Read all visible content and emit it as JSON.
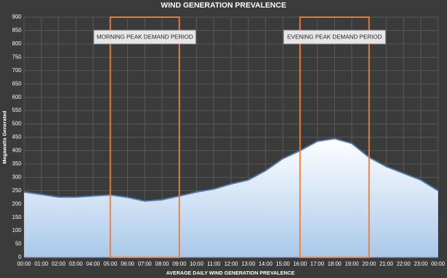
{
  "chart_data": {
    "type": "area",
    "title": "WIND GENERATION PREVALENCE",
    "x_label": "AVERAGE DAILY WIND GENERATION PREVALENCE",
    "y_label": "Megawatts Generated",
    "categories": [
      "00:00",
      "01:00",
      "02:00",
      "03:00",
      "04:00",
      "05:00",
      "06:00",
      "07:00",
      "08:00",
      "09:00",
      "10:00",
      "11:00",
      "12:00",
      "13:00",
      "14:00",
      "15:00",
      "16:00",
      "17:00",
      "18:00",
      "19:00",
      "20:00",
      "21:00",
      "22:00",
      "23:00",
      "00:00"
    ],
    "values": [
      245,
      236,
      226,
      226,
      230,
      234,
      225,
      211,
      216,
      230,
      245,
      256,
      275,
      290,
      325,
      370,
      400,
      435,
      445,
      427,
      375,
      340,
      315,
      290,
      250
    ],
    "color": "#4a7bb5",
    "ylim": [
      0,
      900
    ],
    "yticks": [
      0,
      50,
      100,
      150,
      200,
      250,
      300,
      350,
      400,
      450,
      500,
      550,
      600,
      650,
      700,
      750,
      800,
      850,
      900
    ],
    "grid": true,
    "annotations": [
      {
        "text": "MORNING PEAK DEMAND PERIOD",
        "from": "05:00",
        "to": "09:00",
        "color": "#e8803a"
      },
      {
        "text": "EVENING PEAK DEMAND PERIOD",
        "from": "16:00",
        "to": "20:00",
        "color": "#e8803a"
      }
    ]
  }
}
